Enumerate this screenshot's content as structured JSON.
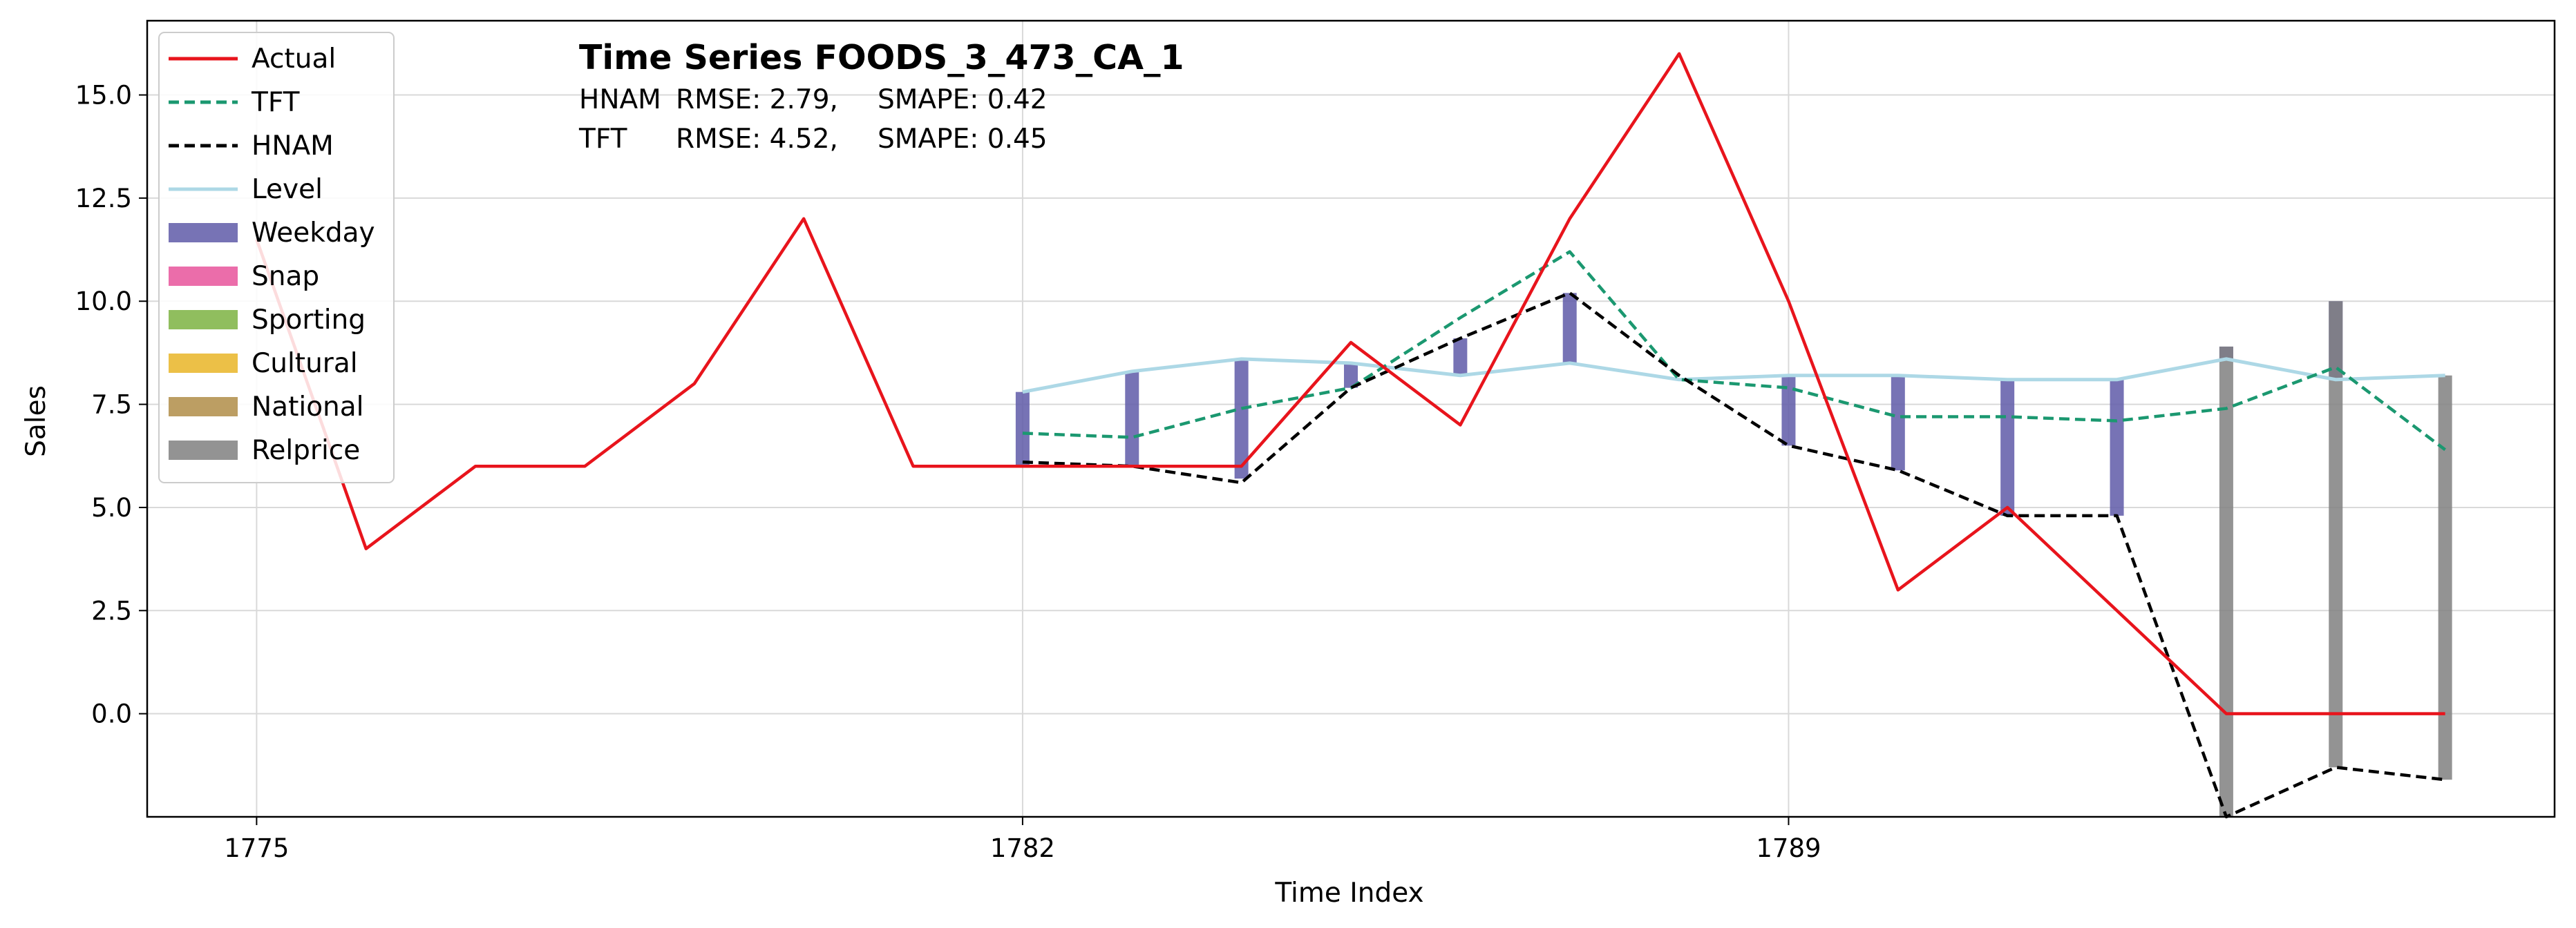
{
  "chart_data": {
    "type": "line",
    "title": "Time Series FOODS_3_473_CA_1",
    "annotations": [
      {
        "model": "HNAM",
        "rmse_text": "RMSE: 2.79,",
        "smape_text": "SMAPE: 0.42"
      },
      {
        "model": "TFT",
        "rmse_text": "RMSE: 4.52,",
        "smape_text": "SMAPE: 0.45"
      }
    ],
    "xlabel": "Time Index",
    "ylabel": "Sales",
    "xlim": [
      1774.0,
      1796.0
    ],
    "ylim": [
      -2.5,
      16.8
    ],
    "x_ticks": [
      1775,
      1782,
      1789
    ],
    "y_ticks": [
      0.0,
      2.5,
      5.0,
      7.5,
      10.0,
      12.5,
      15.0
    ],
    "y_tick_labels": [
      "0.0",
      "2.5",
      "5.0",
      "7.5",
      "10.0",
      "12.5",
      "15.0"
    ],
    "grid": true,
    "legend_position": "top-left",
    "series": [
      {
        "name": "Actual",
        "style": "solid",
        "color": "#e8141c",
        "x": [
          1775,
          1776,
          1777,
          1778,
          1779,
          1780,
          1781,
          1782,
          1783,
          1784,
          1785,
          1786,
          1787,
          1788,
          1789,
          1790,
          1791,
          1792,
          1793,
          1794,
          1795
        ],
        "y": [
          11.5,
          4,
          6,
          6,
          8,
          12,
          6,
          6,
          6,
          6,
          9,
          7,
          12,
          16,
          10,
          3,
          5,
          2.5,
          0,
          0,
          0
        ]
      },
      {
        "name": "TFT",
        "style": "dashed",
        "color": "#1b9870",
        "x": [
          1782,
          1783,
          1784,
          1785,
          1786,
          1787,
          1788,
          1789,
          1790,
          1791,
          1792,
          1793,
          1794,
          1795
        ],
        "y": [
          6.8,
          6.7,
          7.4,
          7.9,
          9.6,
          11.2,
          8.1,
          7.9,
          7.2,
          7.2,
          7.1,
          7.4,
          8.4,
          6.4
        ]
      },
      {
        "name": "HNAM",
        "style": "dashed",
        "color": "#000000",
        "x": [
          1782,
          1783,
          1784,
          1785,
          1786,
          1787,
          1788,
          1789,
          1790,
          1791,
          1792,
          1793,
          1794,
          1795
        ],
        "y": [
          6.1,
          6.0,
          5.6,
          7.9,
          9.1,
          10.2,
          8.2,
          6.5,
          5.9,
          4.8,
          4.8,
          -2.5,
          -1.3,
          -1.6
        ]
      },
      {
        "name": "Level",
        "style": "solid",
        "color": "#add8e6",
        "x": [
          1782,
          1783,
          1784,
          1785,
          1786,
          1787,
          1788,
          1789,
          1790,
          1791,
          1792,
          1793,
          1794,
          1795
        ],
        "y": [
          7.8,
          8.3,
          8.6,
          8.5,
          8.2,
          8.5,
          8.1,
          8.2,
          8.2,
          8.1,
          8.1,
          8.6,
          8.1,
          8.2
        ]
      }
    ],
    "components": [
      {
        "name": "Weekday",
        "color": "#5f5aa8",
        "bars": [
          {
            "x": 1782,
            "from": 7.8,
            "to": 6.0
          },
          {
            "x": 1783,
            "from": 8.3,
            "to": 6.0
          },
          {
            "x": 1784,
            "from": 8.6,
            "to": 5.7
          },
          {
            "x": 1785,
            "from": 8.5,
            "to": 7.9
          },
          {
            "x": 1786,
            "from": 9.1,
            "to": 8.2
          },
          {
            "x": 1787,
            "from": 10.2,
            "to": 8.5
          },
          {
            "x": 1789,
            "from": 8.2,
            "to": 6.5
          },
          {
            "x": 1790,
            "from": 8.2,
            "to": 5.9
          },
          {
            "x": 1791,
            "from": 8.1,
            "to": 4.8
          },
          {
            "x": 1792,
            "from": 8.1,
            "to": 4.8
          },
          {
            "x": 1793,
            "from": 8.9,
            "to": 8.6
          },
          {
            "x": 1794,
            "from": 10.0,
            "to": 8.1
          }
        ]
      },
      {
        "name": "Snap",
        "color": "#e7539b",
        "bars": []
      },
      {
        "name": "Sporting",
        "color": "#7cb342",
        "bars": []
      },
      {
        "name": "Cultural",
        "color": "#e9b527",
        "bars": []
      },
      {
        "name": "National",
        "color": "#b08d48",
        "bars": []
      },
      {
        "name": "Relprice",
        "color": "#808080",
        "bars": [
          {
            "x": 1793,
            "from": 8.9,
            "to": -2.5
          },
          {
            "x": 1794,
            "from": 10.0,
            "to": -1.3
          },
          {
            "x": 1795,
            "from": 8.2,
            "to": -1.6
          }
        ]
      }
    ],
    "legend_order": [
      "Actual",
      "TFT",
      "HNAM",
      "Level",
      "Weekday",
      "Snap",
      "Sporting",
      "Cultural",
      "National",
      "Relprice"
    ]
  }
}
